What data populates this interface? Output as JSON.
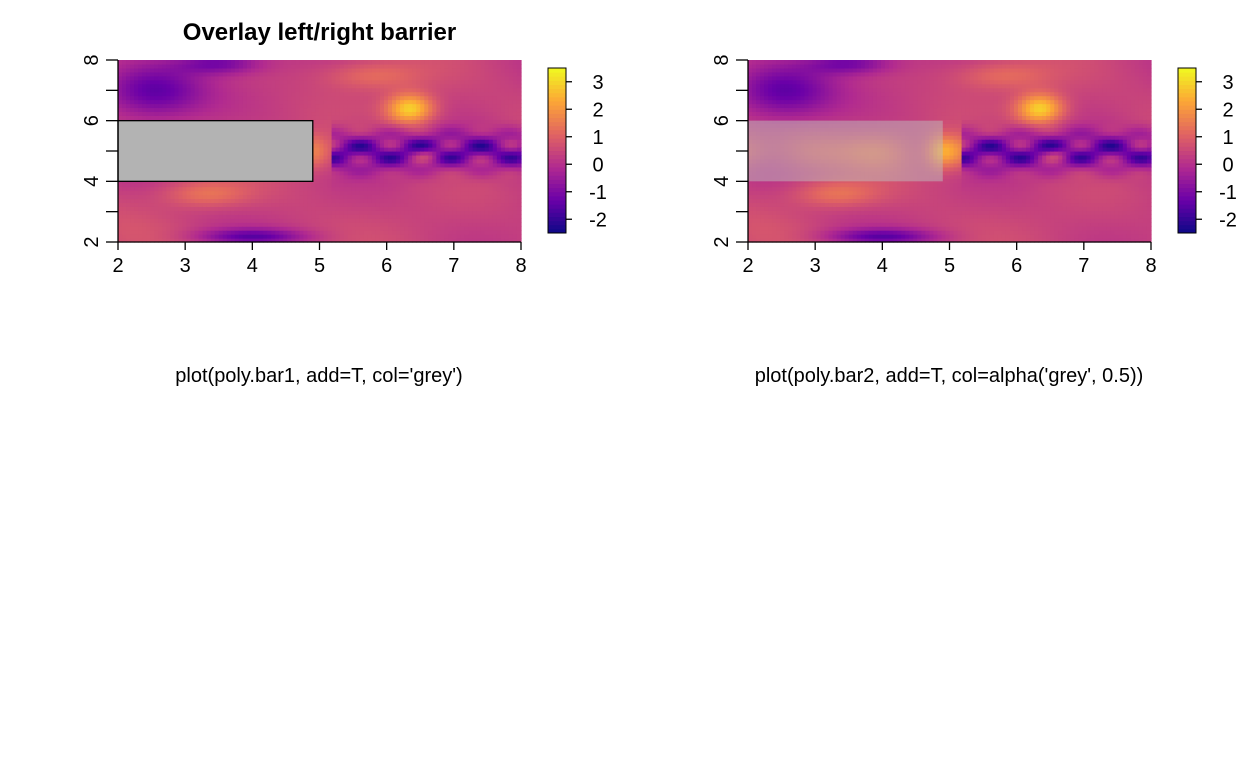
{
  "chart_data": [
    {
      "type": "heatmap",
      "title": "Overlay left/right barrier",
      "xlabel": "",
      "ylabel": "",
      "xlim": [
        2,
        8
      ],
      "ylim": [
        2,
        8
      ],
      "x_ticks": [
        "2",
        "3",
        "4",
        "5",
        "6",
        "7",
        "8"
      ],
      "y_ticks": [
        "2",
        "4",
        "6",
        "8"
      ],
      "colorbar": {
        "range": [
          -2.5,
          3.5
        ],
        "ticks": [
          "-2",
          "-1",
          "0",
          "1",
          "2",
          "3"
        ],
        "colors": [
          "#0d0887",
          "#6a00a8",
          "#b12a90",
          "#e16462",
          "#fca636",
          "#f0f921"
        ]
      },
      "barrier": {
        "x": [
          2,
          4.9
        ],
        "y": [
          4,
          6
        ],
        "fill": "#b3b3b3",
        "opacity": 1
      },
      "caption": "plot(poly.bar1, add=T, col='grey')"
    },
    {
      "type": "heatmap",
      "title": "",
      "xlabel": "",
      "ylabel": "",
      "xlim": [
        2,
        8
      ],
      "ylim": [
        2,
        8
      ],
      "x_ticks": [
        "2",
        "3",
        "4",
        "5",
        "6",
        "7",
        "8"
      ],
      "y_ticks": [
        "2",
        "4",
        "6",
        "8"
      ],
      "colorbar": {
        "range": [
          -2.5,
          3.5
        ],
        "ticks": [
          "-2",
          "-1",
          "0",
          "1",
          "2",
          "3"
        ],
        "colors": [
          "#0d0887",
          "#6a00a8",
          "#b12a90",
          "#e16462",
          "#fca636",
          "#f0f921"
        ]
      },
      "barrier": {
        "x": [
          2,
          4.9
        ],
        "y": [
          4,
          6
        ],
        "fill": "#bebebe",
        "opacity": 0.5
      },
      "caption": "plot(poly.bar2, add=T, col=alpha('grey', 0.5))"
    }
  ]
}
